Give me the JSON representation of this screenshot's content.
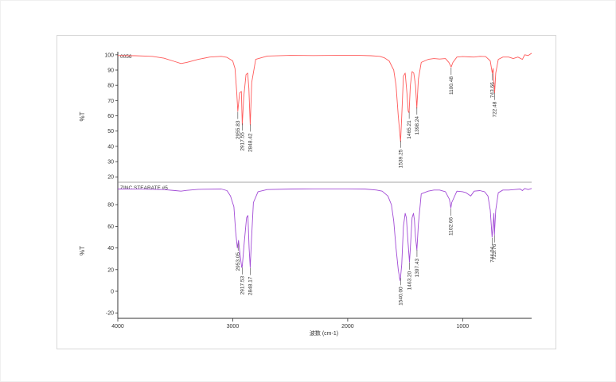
{
  "chart_data": [
    {
      "type": "line",
      "title": "0056",
      "xlabel": "波数 (cm-1)",
      "ylabel": "%T",
      "xlim": [
        4000,
        400
      ],
      "ylim": [
        17,
        102
      ],
      "x_ticks": [
        4000,
        3000,
        2000,
        1000
      ],
      "y_ticks": [
        100,
        90,
        80,
        70,
        60,
        50,
        40,
        30,
        20
      ],
      "color": "#ff5a5a",
      "series": [
        {
          "name": "0056",
          "points": [
            [
              4000,
              99.5
            ],
            [
              3850,
              99.4
            ],
            [
              3700,
              99.0
            ],
            [
              3600,
              97.8
            ],
            [
              3500,
              95.5
            ],
            [
              3450,
              94.3
            ],
            [
              3400,
              95.0
            ],
            [
              3300,
              97.0
            ],
            [
              3200,
              98.5
            ],
            [
              3100,
              99.0
            ],
            [
              3050,
              98.3
            ],
            [
              3000,
              96.0
            ],
            [
              2980,
              91.0
            ],
            [
              2965,
              75.0
            ],
            [
              2956,
              63.0
            ],
            [
              2940,
              75.0
            ],
            [
              2925,
              76.0
            ],
            [
              2917,
              54.0
            ],
            [
              2905,
              72.0
            ],
            [
              2885,
              87.0
            ],
            [
              2870,
              88.0
            ],
            [
              2860,
              78.0
            ],
            [
              2848,
              54.0
            ],
            [
              2835,
              82.0
            ],
            [
              2800,
              97.0
            ],
            [
              2700,
              99.2
            ],
            [
              2500,
              99.6
            ],
            [
              2300,
              99.5
            ],
            [
              2100,
              99.6
            ],
            [
              1900,
              99.6
            ],
            [
              1800,
              99.4
            ],
            [
              1720,
              99.0
            ],
            [
              1680,
              98.0
            ],
            [
              1640,
              96.0
            ],
            [
              1600,
              90.0
            ],
            [
              1580,
              80.0
            ],
            [
              1560,
              60.0
            ],
            [
              1540,
              43.0
            ],
            [
              1530,
              60.0
            ],
            [
              1515,
              86.0
            ],
            [
              1500,
              88.0
            ],
            [
              1485,
              75.0
            ],
            [
              1474,
              63.0
            ],
            [
              1466,
              62.0
            ],
            [
              1455,
              80.0
            ],
            [
              1440,
              89.0
            ],
            [
              1425,
              88.0
            ],
            [
              1410,
              80.0
            ],
            [
              1399,
              65.0
            ],
            [
              1385,
              84.0
            ],
            [
              1360,
              95.0
            ],
            [
              1300,
              97.0
            ],
            [
              1250,
              97.5
            ],
            [
              1200,
              97.2
            ],
            [
              1150,
              97.5
            ],
            [
              1120,
              95.0
            ],
            [
              1100,
              92.0
            ],
            [
              1085,
              95.0
            ],
            [
              1050,
              98.5
            ],
            [
              1000,
              98.8
            ],
            [
              940,
              98.6
            ],
            [
              900,
              98.5
            ],
            [
              850,
              99.0
            ],
            [
              800,
              98.8
            ],
            [
              760,
              96.0
            ],
            [
              743,
              88.0
            ],
            [
              735,
              91.0
            ],
            [
              722,
              75.0
            ],
            [
              712,
              88.0
            ],
            [
              690,
              97.0
            ],
            [
              650,
              98.5
            ],
            [
              600,
              98.5
            ],
            [
              560,
              97.5
            ],
            [
              520,
              98.5
            ],
            [
              480,
              97.0
            ],
            [
              460,
              100.0
            ],
            [
              430,
              99.5
            ],
            [
              400,
              101.0
            ]
          ]
        }
      ],
      "annotations": [
        {
          "x": 2955.83,
          "label": "2955.83"
        },
        {
          "x": 2917.55,
          "label": "2917.55"
        },
        {
          "x": 2848.42,
          "label": "2848.42"
        },
        {
          "x": 1539.25,
          "label": "1539.25"
        },
        {
          "x": 1465.21,
          "label": "1465.21"
        },
        {
          "x": 1398.24,
          "label": "1398.24"
        },
        {
          "x": 1100.48,
          "label": "1100.48"
        },
        {
          "x": 743.66,
          "label": "743.66"
        },
        {
          "x": 722.48,
          "label": "722.48"
        }
      ]
    },
    {
      "type": "line",
      "title": "ZINC STEARATE #5",
      "xlabel": "波数 (cm-1)",
      "ylabel": "%T",
      "xlim": [
        4000,
        400
      ],
      "ylim": [
        -25,
        100
      ],
      "x_ticks": [
        4000,
        3000,
        2000,
        1000
      ],
      "y_ticks": [
        80,
        60,
        40,
        20,
        0,
        -20
      ],
      "color": "#a24bd6",
      "series": [
        {
          "name": "ZINC STEARATE #5",
          "points": [
            [
              4000,
              94.5
            ],
            [
              3800,
              94.4
            ],
            [
              3600,
              94.0
            ],
            [
              3500,
              93.0
            ],
            [
              3450,
              92.5
            ],
            [
              3400,
              93.2
            ],
            [
              3300,
              94.2
            ],
            [
              3100,
              94.5
            ],
            [
              3050,
              93.0
            ],
            [
              3020,
              88.0
            ],
            [
              2990,
              78.0
            ],
            [
              2975,
              55.0
            ],
            [
              2960,
              40.0
            ],
            [
              2950,
              47.0
            ],
            [
              2935,
              33.0
            ],
            [
              2922,
              22.0
            ],
            [
              2917,
              23.0
            ],
            [
              2900,
              45.0
            ],
            [
              2880,
              68.0
            ],
            [
              2868,
              70.0
            ],
            [
              2858,
              40.0
            ],
            [
              2848,
              22.0
            ],
            [
              2838,
              45.0
            ],
            [
              2820,
              82.0
            ],
            [
              2780,
              92.0
            ],
            [
              2700,
              94.0
            ],
            [
              2500,
              94.5
            ],
            [
              2300,
              94.6
            ],
            [
              2100,
              94.6
            ],
            [
              2000,
              94.6
            ],
            [
              1850,
              94.5
            ],
            [
              1750,
              93.5
            ],
            [
              1700,
              92.5
            ],
            [
              1650,
              88.0
            ],
            [
              1620,
              80.0
            ],
            [
              1600,
              65.0
            ],
            [
              1580,
              40.0
            ],
            [
              1560,
              20.0
            ],
            [
              1545,
              10.0
            ],
            [
              1540,
              13.0
            ],
            [
              1530,
              25.0
            ],
            [
              1515,
              60.0
            ],
            [
              1500,
              72.0
            ],
            [
              1490,
              68.0
            ],
            [
              1475,
              45.0
            ],
            [
              1463,
              27.0
            ],
            [
              1455,
              40.0
            ],
            [
              1440,
              68.0
            ],
            [
              1428,
              72.0
            ],
            [
              1420,
              66.0
            ],
            [
              1410,
              50.0
            ],
            [
              1398,
              38.0
            ],
            [
              1385,
              62.0
            ],
            [
              1360,
              90.0
            ],
            [
              1300,
              92.5
            ],
            [
              1250,
              93.5
            ],
            [
              1200,
              93.5
            ],
            [
              1150,
              92.0
            ],
            [
              1115,
              85.0
            ],
            [
              1103,
              77.0
            ],
            [
              1095,
              82.0
            ],
            [
              1050,
              92.5
            ],
            [
              1000,
              92.0
            ],
            [
              970,
              91.0
            ],
            [
              930,
              88.0
            ],
            [
              900,
              92.5
            ],
            [
              850,
              93.0
            ],
            [
              810,
              92.0
            ],
            [
              780,
              88.0
            ],
            [
              760,
              75.0
            ],
            [
              744,
              50.0
            ],
            [
              735,
              62.0
            ],
            [
              728,
              72.0
            ],
            [
              724,
              52.0
            ],
            [
              712,
              75.0
            ],
            [
              690,
              91.0
            ],
            [
              650,
              93.5
            ],
            [
              600,
              93.5
            ],
            [
              550,
              94.0
            ],
            [
              500,
              94.5
            ],
            [
              480,
              93.0
            ],
            [
              460,
              95.0
            ],
            [
              430,
              94.0
            ],
            [
              400,
              95.0
            ]
          ]
        }
      ],
      "annotations": [
        {
          "x": 2953.05,
          "label": "2953.05"
        },
        {
          "x": 2917.53,
          "label": "2917.53"
        },
        {
          "x": 2848.17,
          "label": "2848.17"
        },
        {
          "x": 1540.0,
          "label": "1540.00"
        },
        {
          "x": 1463.2,
          "label": "1463.20"
        },
        {
          "x": 1397.43,
          "label": "1397.43"
        },
        {
          "x": 1102.66,
          "label": "1102.66"
        },
        {
          "x": 744.04,
          "label": "744.04"
        },
        {
          "x": 723.76,
          "label": "723.76"
        }
      ]
    }
  ]
}
